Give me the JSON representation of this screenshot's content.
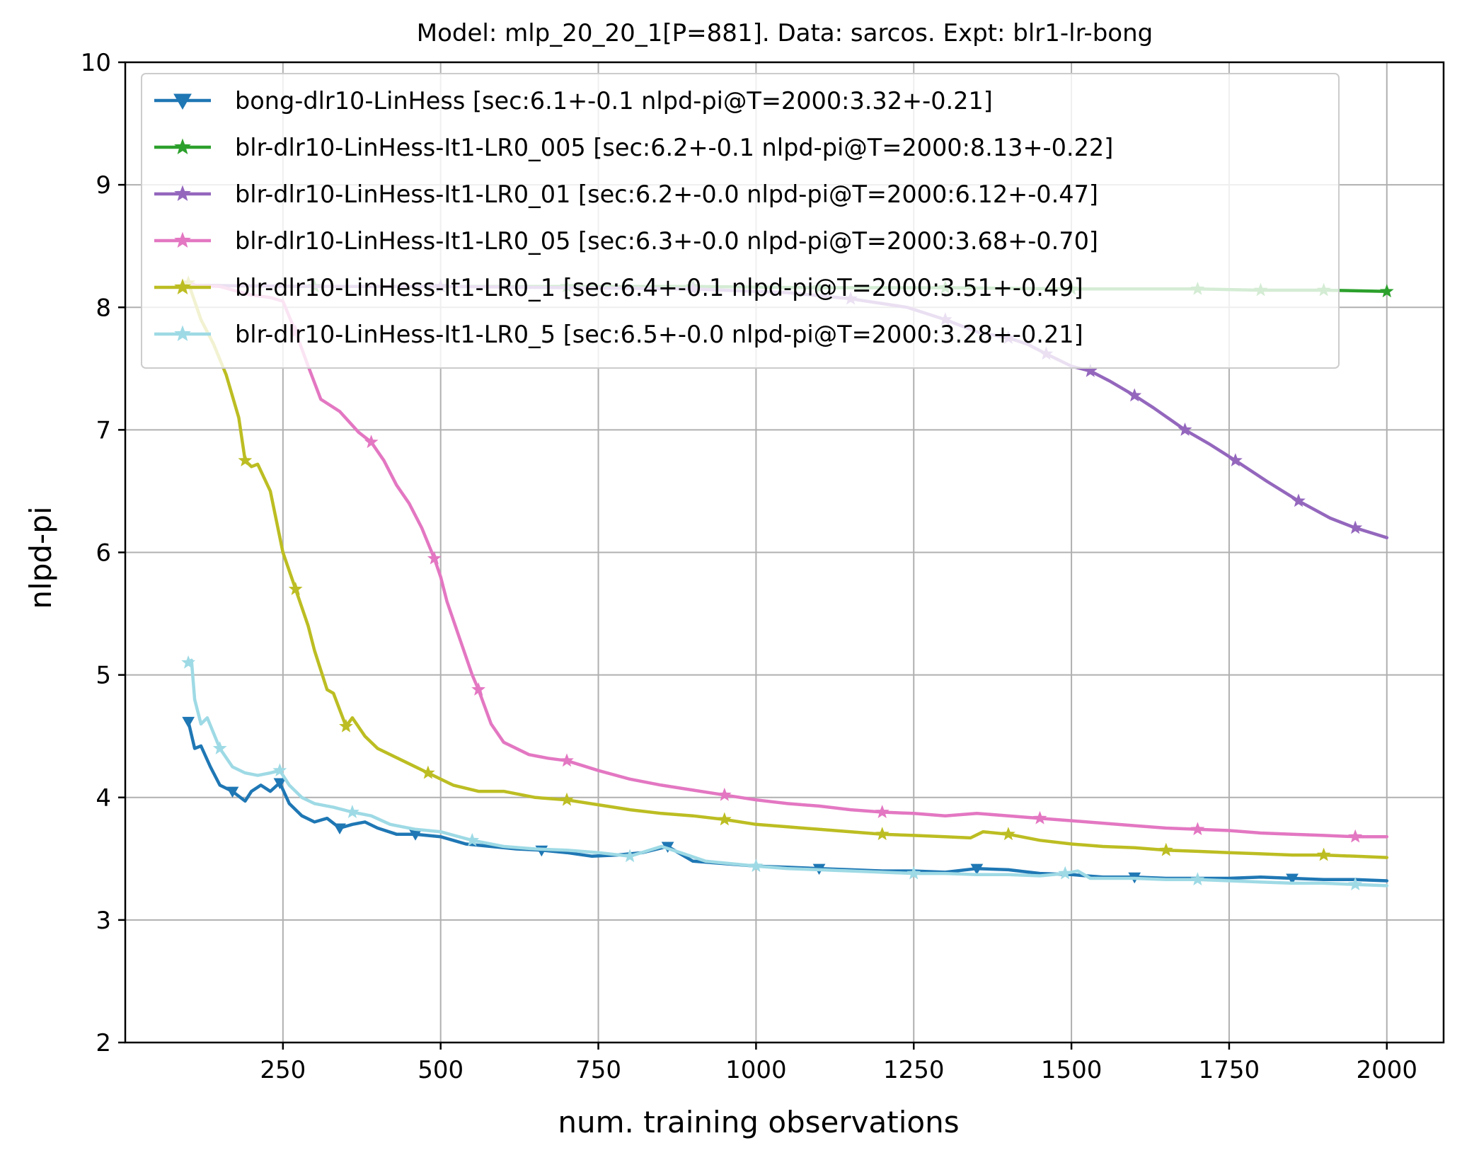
{
  "chart_data": {
    "type": "line",
    "title": "Model: mlp_20_20_1[P=881]. Data: sarcos. Expt: blr1-lr-bong",
    "xlabel": "num. training observations",
    "ylabel": "nlpd-pi",
    "xlim": [
      0,
      2090
    ],
    "ylim": [
      2,
      10
    ],
    "xticks": [
      250,
      500,
      750,
      1000,
      1250,
      1500,
      1750,
      2000
    ],
    "yticks": [
      2,
      3,
      4,
      5,
      6,
      7,
      8,
      9,
      10
    ],
    "grid": true,
    "legend_position": "upper-left",
    "series": [
      {
        "name": "bong-dlr10-LinHess [sec:6.1+-0.1 nlpd-pi@T=2000:3.32+-0.21]",
        "color": "#1f77b4",
        "marker": "triangle-down",
        "x": [
          100,
          110,
          120,
          135,
          150,
          170,
          190,
          200,
          215,
          230,
          245,
          260,
          280,
          300,
          320,
          340,
          360,
          380,
          400,
          430,
          460,
          500,
          540,
          580,
          620,
          660,
          700,
          740,
          780,
          820,
          860,
          900,
          950,
          1000,
          1050,
          1100,
          1150,
          1200,
          1250,
          1300,
          1350,
          1400,
          1450,
          1500,
          1550,
          1600,
          1650,
          1700,
          1750,
          1800,
          1850,
          1900,
          1950,
          2000
        ],
        "y": [
          4.62,
          4.4,
          4.42,
          4.25,
          4.1,
          4.05,
          3.97,
          4.05,
          4.1,
          4.05,
          4.12,
          3.95,
          3.85,
          3.8,
          3.83,
          3.75,
          3.78,
          3.8,
          3.75,
          3.7,
          3.7,
          3.68,
          3.62,
          3.6,
          3.58,
          3.57,
          3.55,
          3.52,
          3.53,
          3.55,
          3.6,
          3.48,
          3.46,
          3.44,
          3.43,
          3.42,
          3.41,
          3.4,
          3.4,
          3.39,
          3.42,
          3.41,
          3.38,
          3.37,
          3.35,
          3.35,
          3.34,
          3.34,
          3.34,
          3.35,
          3.34,
          3.33,
          3.33,
          3.32
        ]
      },
      {
        "name": "blr-dlr10-LinHess-It1-LR0_005 [sec:6.2+-0.1 nlpd-pi@T=2000:8.13+-0.22]",
        "color": "#2ca02c",
        "marker": "star",
        "x": [
          100,
          300,
          500,
          700,
          900,
          1100,
          1300,
          1500,
          1700,
          1800,
          1900,
          2000
        ],
        "y": [
          8.18,
          8.17,
          8.17,
          8.17,
          8.17,
          8.16,
          8.16,
          8.15,
          8.15,
          8.14,
          8.14,
          8.13
        ]
      },
      {
        "name": "blr-dlr10-LinHess-It1-LR0_01 [sec:6.2+-0.0 nlpd-pi@T=2000:6.12+-0.47]",
        "color": "#9467bd",
        "marker": "star",
        "x": [
          100,
          300,
          500,
          700,
          900,
          1050,
          1150,
          1240,
          1300,
          1350,
          1400,
          1430,
          1460,
          1500,
          1530,
          1560,
          1600,
          1630,
          1680,
          1720,
          1760,
          1810,
          1860,
          1910,
          1950,
          2000
        ],
        "y": [
          8.18,
          8.17,
          8.17,
          8.16,
          8.15,
          8.12,
          8.07,
          8.0,
          7.9,
          7.8,
          7.75,
          7.7,
          7.62,
          7.52,
          7.48,
          7.4,
          7.28,
          7.18,
          7.0,
          6.88,
          6.75,
          6.58,
          6.42,
          6.28,
          6.2,
          6.12
        ]
      },
      {
        "name": "blr-dlr10-LinHess-It1-LR0_05 [sec:6.3+-0.0 nlpd-pi@T=2000:3.68+-0.70]",
        "color": "#e377c2",
        "marker": "star",
        "x": [
          100,
          150,
          200,
          230,
          250,
          270,
          290,
          310,
          340,
          370,
          390,
          410,
          430,
          450,
          470,
          490,
          500,
          510,
          530,
          550,
          560,
          580,
          600,
          640,
          670,
          700,
          750,
          800,
          850,
          900,
          950,
          1000,
          1050,
          1100,
          1150,
          1200,
          1250,
          1300,
          1350,
          1400,
          1450,
          1500,
          1550,
          1600,
          1650,
          1700,
          1750,
          1800,
          1850,
          1900,
          1950,
          2000
        ],
        "y": [
          8.18,
          8.17,
          8.1,
          8.08,
          8.05,
          7.8,
          7.52,
          7.25,
          7.15,
          6.98,
          6.9,
          6.75,
          6.55,
          6.4,
          6.2,
          5.95,
          5.8,
          5.6,
          5.3,
          5.0,
          4.88,
          4.6,
          4.45,
          4.35,
          4.32,
          4.3,
          4.22,
          4.15,
          4.1,
          4.06,
          4.02,
          3.98,
          3.95,
          3.93,
          3.9,
          3.88,
          3.87,
          3.85,
          3.87,
          3.85,
          3.83,
          3.81,
          3.79,
          3.77,
          3.75,
          3.74,
          3.73,
          3.71,
          3.7,
          3.69,
          3.68,
          3.68
        ]
      },
      {
        "name": "blr-dlr10-LinHess-It1-LR0_1 [sec:6.4+-0.1 nlpd-pi@T=2000:3.51+-0.49]",
        "color": "#bcbd22",
        "marker": "star",
        "x": [
          100,
          120,
          140,
          160,
          180,
          190,
          200,
          210,
          230,
          250,
          270,
          290,
          300,
          320,
          330,
          350,
          360,
          380,
          400,
          440,
          480,
          520,
          560,
          600,
          650,
          700,
          750,
          800,
          850,
          900,
          950,
          1000,
          1050,
          1100,
          1150,
          1200,
          1250,
          1300,
          1340,
          1360,
          1400,
          1450,
          1500,
          1550,
          1600,
          1650,
          1700,
          1750,
          1800,
          1850,
          1900,
          1950,
          2000
        ],
        "y": [
          8.2,
          7.9,
          7.7,
          7.45,
          7.1,
          6.75,
          6.7,
          6.72,
          6.5,
          6.0,
          5.7,
          5.4,
          5.2,
          4.88,
          4.85,
          4.58,
          4.65,
          4.5,
          4.4,
          4.3,
          4.2,
          4.1,
          4.05,
          4.05,
          4.0,
          3.98,
          3.94,
          3.9,
          3.87,
          3.85,
          3.82,
          3.78,
          3.76,
          3.74,
          3.72,
          3.7,
          3.69,
          3.68,
          3.67,
          3.72,
          3.7,
          3.65,
          3.62,
          3.6,
          3.59,
          3.57,
          3.56,
          3.55,
          3.54,
          3.53,
          3.53,
          3.52,
          3.51
        ]
      },
      {
        "name": "blr-dlr10-LinHess-It1-LR0_5 [sec:6.5+-0.0 nlpd-pi@T=2000:3.28+-0.21]",
        "color": "#9edae5",
        "marker": "star",
        "x": [
          100,
          105,
          110,
          120,
          130,
          150,
          170,
          190,
          210,
          230,
          245,
          260,
          280,
          300,
          330,
          360,
          390,
          420,
          460,
          500,
          550,
          600,
          650,
          700,
          750,
          800,
          850,
          880,
          920,
          960,
          1000,
          1050,
          1100,
          1150,
          1200,
          1250,
          1300,
          1350,
          1400,
          1450,
          1490,
          1510,
          1530,
          1600,
          1650,
          1700,
          1750,
          1800,
          1850,
          1900,
          1950,
          2000
        ],
        "y": [
          5.1,
          5.12,
          4.8,
          4.6,
          4.65,
          4.4,
          4.25,
          4.2,
          4.18,
          4.2,
          4.22,
          4.1,
          4.0,
          3.95,
          3.92,
          3.88,
          3.85,
          3.78,
          3.74,
          3.72,
          3.65,
          3.6,
          3.58,
          3.57,
          3.55,
          3.52,
          3.6,
          3.55,
          3.48,
          3.46,
          3.44,
          3.42,
          3.41,
          3.4,
          3.39,
          3.38,
          3.38,
          3.37,
          3.37,
          3.36,
          3.38,
          3.4,
          3.34,
          3.34,
          3.33,
          3.33,
          3.32,
          3.31,
          3.3,
          3.3,
          3.29,
          3.28
        ]
      }
    ]
  }
}
